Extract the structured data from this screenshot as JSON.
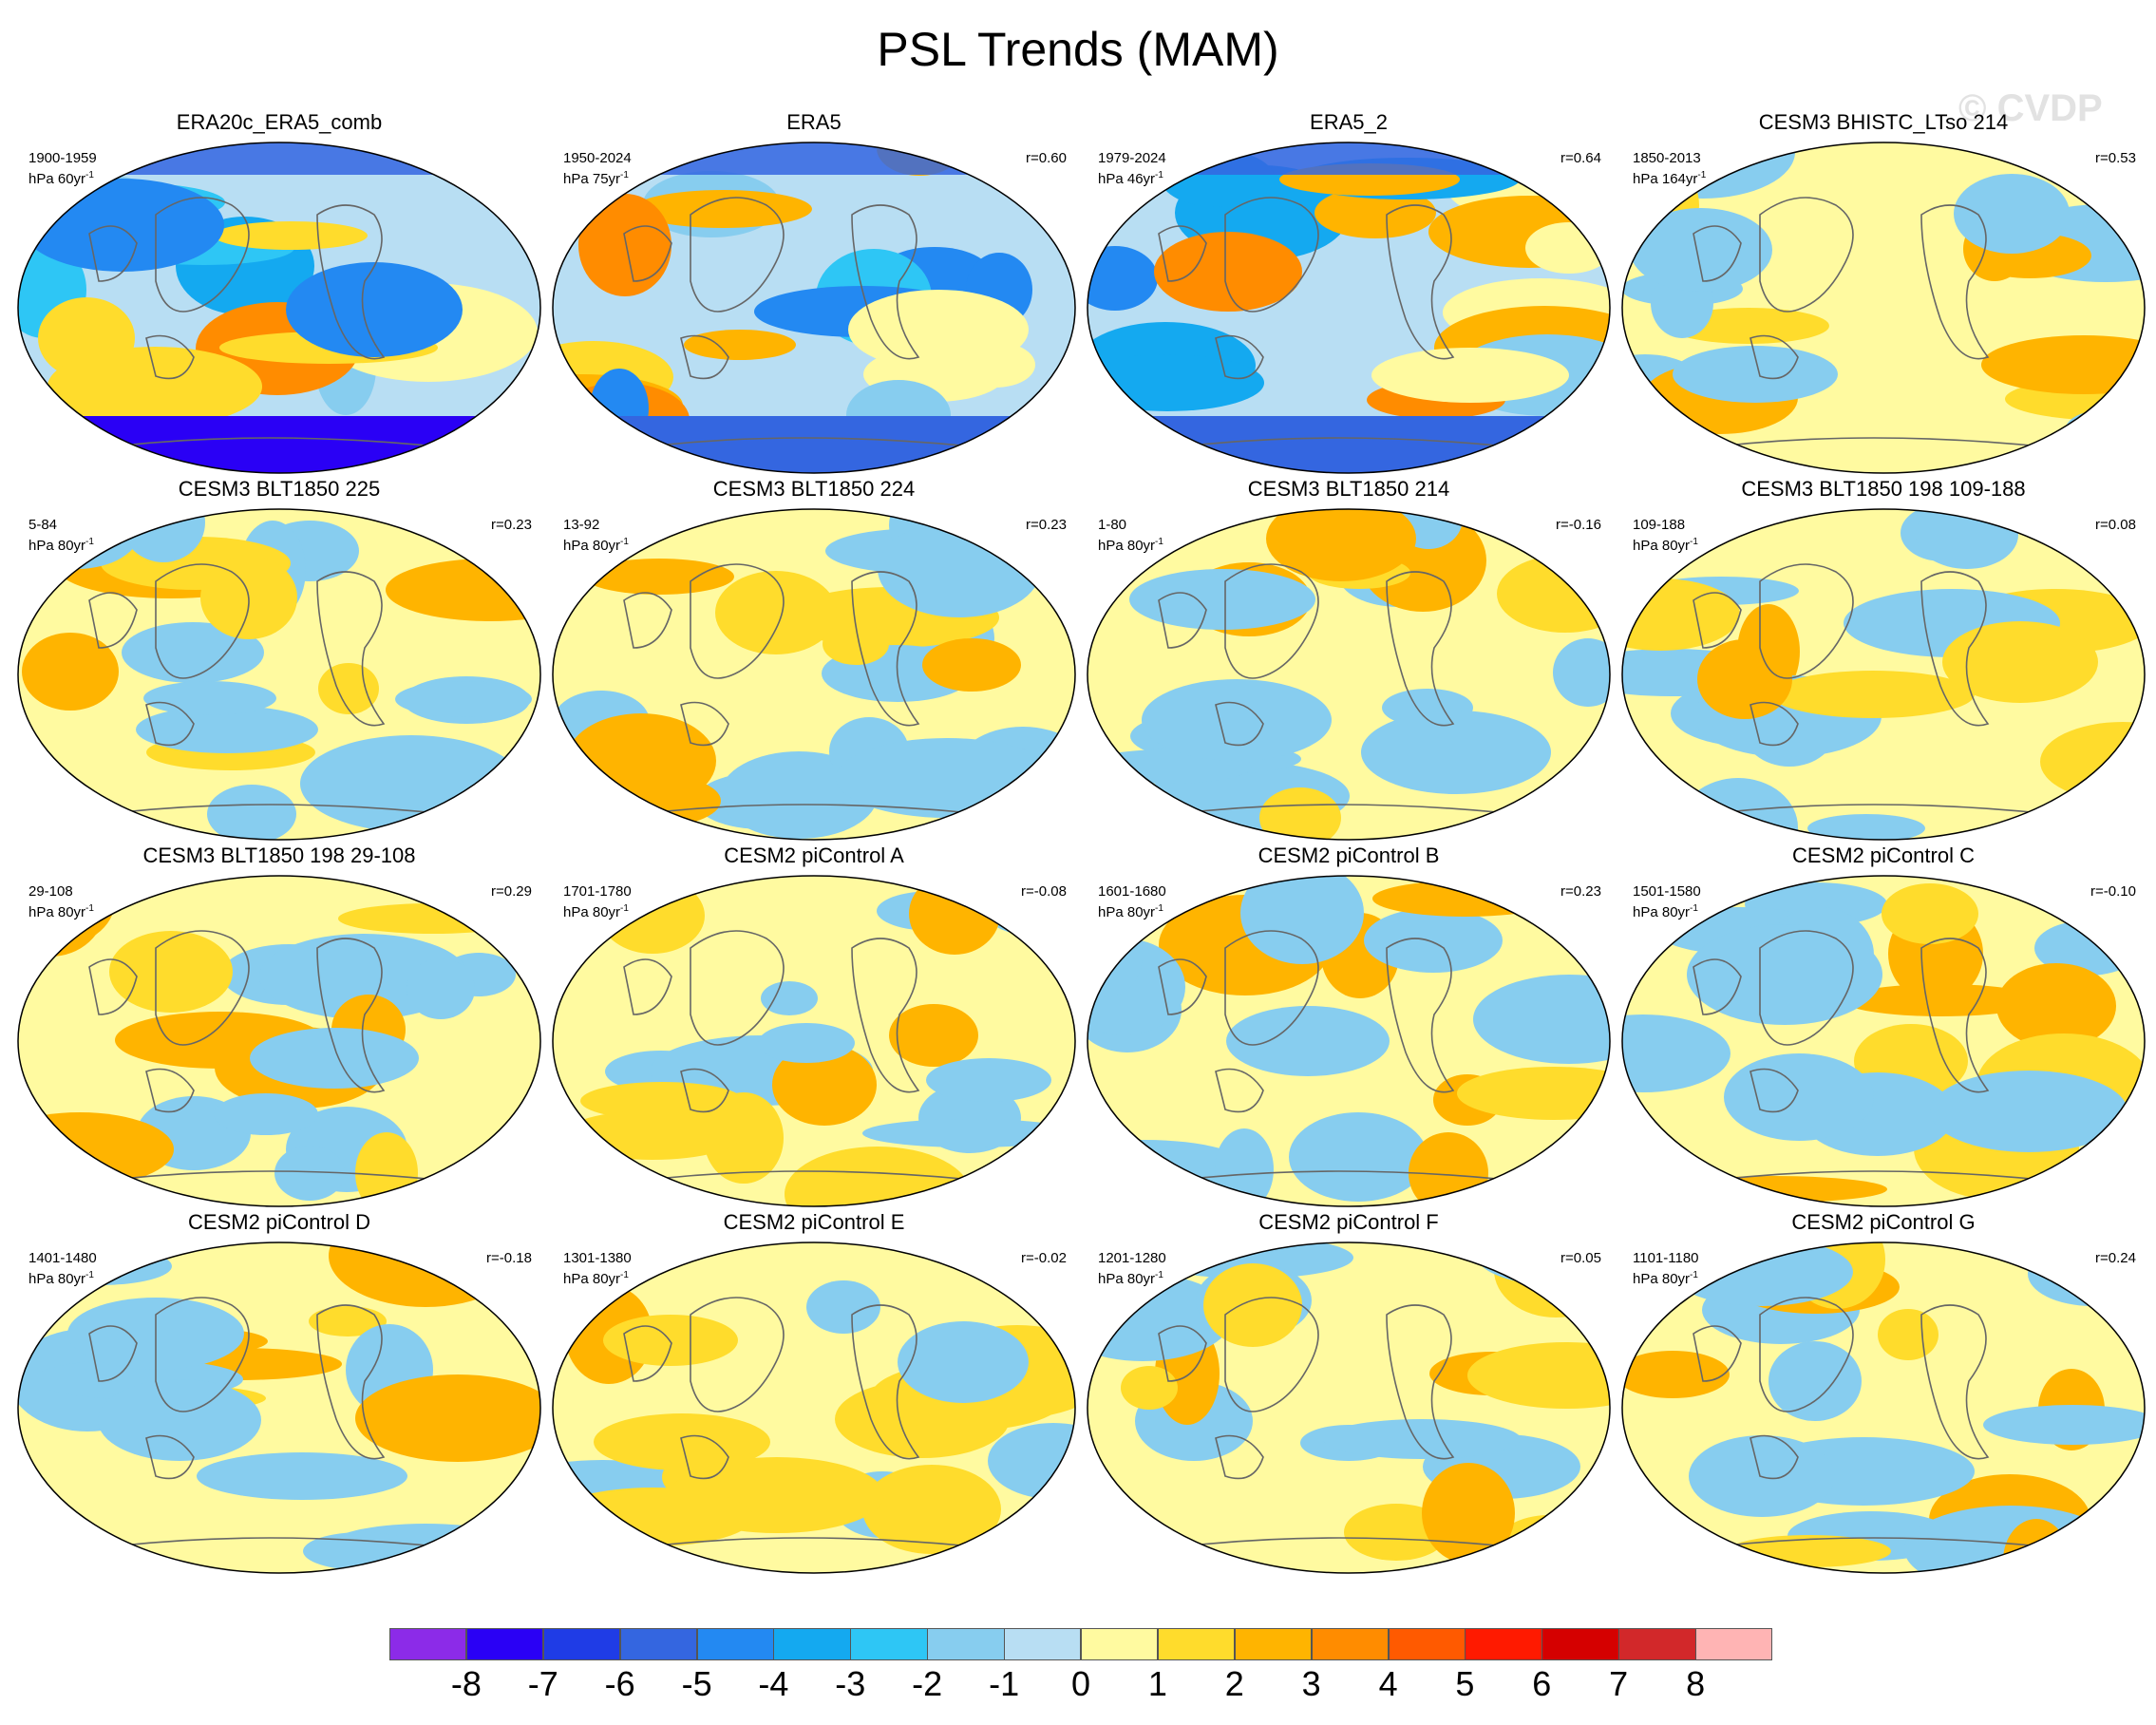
{
  "figure": {
    "title": "PSL Trends (MAM)",
    "watermark": "© CVDP"
  },
  "palette": [
    "#8C2BE8",
    "#2A00F5",
    "#1F3CE6",
    "#3466E0",
    "#2389F2",
    "#14A9F0",
    "#2EC6F5",
    "#87CDEF",
    "#B8DEF3",
    "#FFFAA0",
    "#FFDC2C",
    "#FFB400",
    "#FF8C00",
    "#FF5A00",
    "#FF1A00",
    "#D50000",
    "#D2282A",
    "#FFB4B4"
  ],
  "colorbar": {
    "labels": [
      "-8",
      "-7",
      "-6",
      "-5",
      "-4",
      "-3",
      "-2",
      "-1",
      "0",
      "1",
      "2",
      "3",
      "4",
      "5",
      "6",
      "7",
      "8"
    ],
    "levels": [
      -8,
      -7,
      -6,
      -5,
      -4,
      -3,
      -2,
      -1,
      0,
      1,
      2,
      3,
      4,
      5,
      6,
      7,
      8
    ]
  },
  "panels": [
    {
      "title": "ERA20c_ERA5_comb",
      "years": "1900-1959",
      "units": "hPa 60yr",
      "r": ""
    },
    {
      "title": "ERA5",
      "years": "1950-2024",
      "units": "hPa 75yr",
      "r": "r=0.60"
    },
    {
      "title": "ERA5_2",
      "years": "1979-2024",
      "units": "hPa 46yr",
      "r": "r=0.64"
    },
    {
      "title": "CESM3 BHISTC_LTso 214",
      "years": "1850-2013",
      "units": "hPa 164yr",
      "r": "r=0.53"
    },
    {
      "title": "CESM3 BLT1850 225",
      "years": "5-84",
      "units": "hPa 80yr",
      "r": "r=0.23"
    },
    {
      "title": "CESM3 BLT1850 224",
      "years": "13-92",
      "units": "hPa 80yr",
      "r": "r=0.23"
    },
    {
      "title": "CESM3 BLT1850 214",
      "years": "1-80",
      "units": "hPa 80yr",
      "r": "r=-0.16"
    },
    {
      "title": "CESM3 BLT1850 198 109-188",
      "years": "109-188",
      "units": "hPa 80yr",
      "r": "r=0.08"
    },
    {
      "title": "CESM3 BLT1850 198 29-108",
      "years": "29-108",
      "units": "hPa 80yr",
      "r": "r=0.29"
    },
    {
      "title": "CESM2 piControl A",
      "years": "1701-1780",
      "units": "hPa 80yr",
      "r": "r=-0.08"
    },
    {
      "title": "CESM2 piControl B",
      "years": "1601-1680",
      "units": "hPa 80yr",
      "r": "r=0.23"
    },
    {
      "title": "CESM2 piControl C",
      "years": "1501-1580",
      "units": "hPa 80yr",
      "r": "r=-0.10"
    },
    {
      "title": "CESM2 piControl D",
      "years": "1401-1480",
      "units": "hPa 80yr",
      "r": "r=-0.18"
    },
    {
      "title": "CESM2 piControl E",
      "years": "1301-1380",
      "units": "hPa 80yr",
      "r": "r=-0.02"
    },
    {
      "title": "CESM2 piControl F",
      "years": "1201-1280",
      "units": "hPa 80yr",
      "r": "r=0.05"
    },
    {
      "title": "CESM2 piControl G",
      "years": "1101-1180",
      "units": "hPa 80yr",
      "r": "r=0.24"
    }
  ]
}
